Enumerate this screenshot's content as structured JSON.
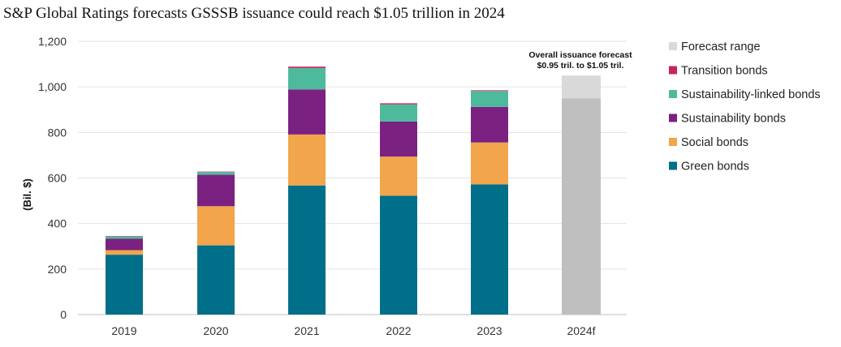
{
  "chart_data": {
    "type": "bar",
    "stacked": true,
    "title": "S&P Global Ratings forecasts GSSSB issuance could reach $1.05 trillion in 2024",
    "xlabel": "",
    "ylabel": "(Bil. $)",
    "ylim": [
      0,
      1200
    ],
    "yticks": [
      "0",
      "200",
      "400",
      "600",
      "800",
      "1,000",
      "1,200"
    ],
    "ytick_values": [
      0,
      200,
      400,
      600,
      800,
      1000,
      1200
    ],
    "categories": [
      "2019",
      "2020",
      "2021",
      "2022",
      "2023",
      "2024f"
    ],
    "series": [
      {
        "name": "Green bonds",
        "color": "#006f8a",
        "values": [
          263,
          304,
          567,
          522,
          572,
          0
        ]
      },
      {
        "name": "Social bonds",
        "color": "#f2a54a",
        "values": [
          20,
          172,
          224,
          172,
          184,
          0
        ]
      },
      {
        "name": "Sustainability bonds",
        "color": "#7a2182",
        "values": [
          50,
          138,
          198,
          154,
          156,
          0
        ]
      },
      {
        "name": "Sustainability-linked bonds",
        "color": "#4dbb9b",
        "values": [
          10,
          12,
          94,
          75,
          70,
          0
        ]
      },
      {
        "name": "Transition bonds",
        "color": "#c8245c",
        "values": [
          2,
          2,
          6,
          5,
          3,
          0
        ]
      }
    ],
    "forecast": {
      "category": "2024f",
      "base_value": 950,
      "range": [
        950,
        1050
      ],
      "base_color": "#bfbfbf",
      "range_name": "Forecast range",
      "range_color": "#d9d9d9",
      "annotation": [
        "Overall issuance forecast",
        "$0.95 tril. to $1.05 tril."
      ]
    },
    "legend": {
      "placement": "right",
      "entries": [
        {
          "name": "Forecast range",
          "color": "#d9d9d9"
        },
        {
          "name": "Transition bonds",
          "color": "#c8245c"
        },
        {
          "name": "Sustainability-linked bonds",
          "color": "#4dbb9b"
        },
        {
          "name": "Sustainability bonds",
          "color": "#7a2182"
        },
        {
          "name": "Social bonds",
          "color": "#f2a54a"
        },
        {
          "name": "Green bonds",
          "color": "#006f8a"
        }
      ]
    }
  }
}
